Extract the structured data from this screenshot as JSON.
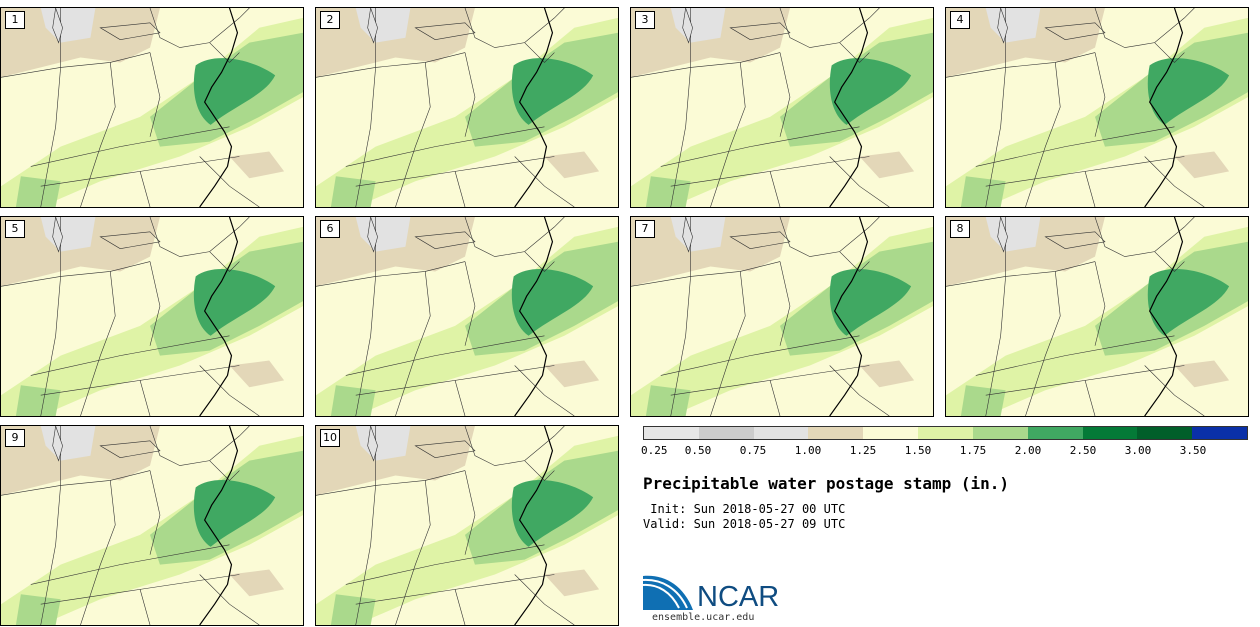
{
  "panels": [
    {
      "label": "1"
    },
    {
      "label": "2"
    },
    {
      "label": "3"
    },
    {
      "label": "4"
    },
    {
      "label": "5"
    },
    {
      "label": "6"
    },
    {
      "label": "7"
    },
    {
      "label": "8"
    },
    {
      "label": "9"
    },
    {
      "label": "10"
    }
  ],
  "colorbar": {
    "colors": [
      "#e6e6e6",
      "#cccccc",
      "#e2e2e2",
      "#e3d7b8",
      "#fbfbd6",
      "#dff3a6",
      "#aad98c",
      "#40a862",
      "#047a37",
      "#015f2a",
      "#0a30a8"
    ],
    "tick_labels": [
      "0.25",
      "0.50",
      "0.75",
      "1.00",
      "1.25",
      "1.50",
      "1.75",
      "2.00",
      "2.50",
      "3.00",
      "3.50"
    ]
  },
  "title": "Precipitable water postage stamp (in.)",
  "init_line": " Init: Sun 2018-05-27 00 UTC",
  "valid_line": "Valid: Sun 2018-05-27 09 UTC",
  "logo": {
    "text": "NCAR",
    "brand_color": "#0f6fb3"
  },
  "website": "ensemble.ucar.edu"
}
